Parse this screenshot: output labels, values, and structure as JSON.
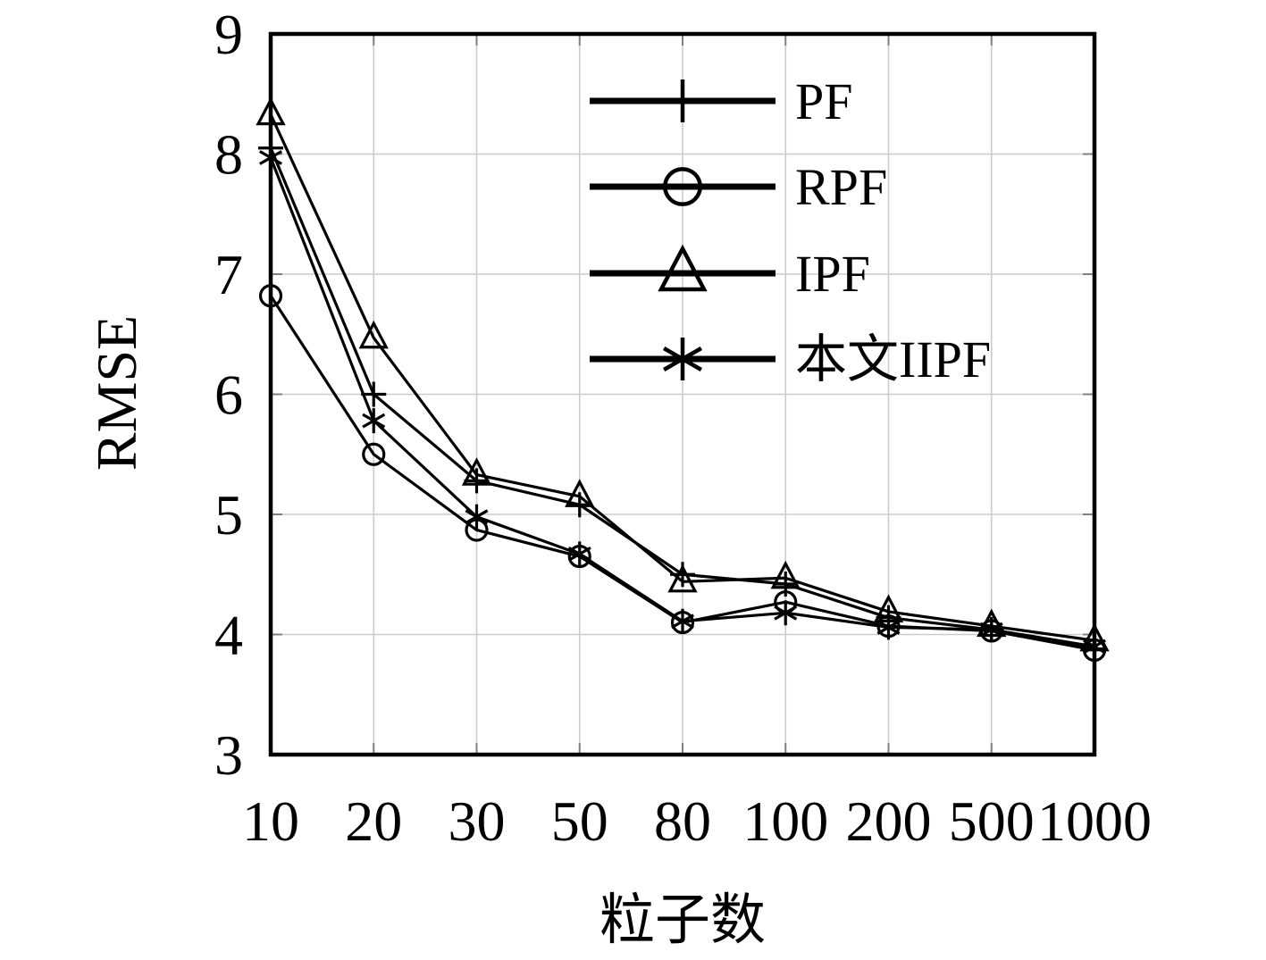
{
  "page": {
    "background": "#ffffff"
  },
  "chart_data": {
    "type": "line",
    "title": "",
    "xlabel": "粒子数",
    "ylabel": "RMSE",
    "x_scale": "categorical",
    "categories": [
      "10",
      "20",
      "30",
      "50",
      "80",
      "100",
      "200",
      "500",
      "1000"
    ],
    "ylim": [
      3,
      9
    ],
    "yticks": [
      9,
      8,
      7,
      6,
      5,
      4,
      3
    ],
    "grid": true,
    "legend_position": "top-right-inside",
    "legend_border": false,
    "series": [
      {
        "name": "PF",
        "marker": "plus",
        "color": "#000000",
        "values": [
          8.05,
          6.0,
          5.28,
          5.08,
          4.5,
          4.42,
          4.14,
          4.04,
          3.88
        ]
      },
      {
        "name": "RPF",
        "marker": "circle",
        "color": "#000000",
        "values": [
          6.82,
          5.5,
          4.87,
          4.65,
          4.1,
          4.27,
          4.07,
          4.03,
          3.87
        ]
      },
      {
        "name": "IPF",
        "marker": "triangle",
        "color": "#000000",
        "values": [
          8.33,
          6.47,
          5.33,
          5.15,
          4.44,
          4.47,
          4.19,
          4.07,
          3.95
        ]
      },
      {
        "name": "本文IIPF",
        "marker": "asterisk",
        "color": "#000000",
        "values": [
          7.97,
          5.78,
          4.98,
          4.67,
          4.11,
          4.18,
          4.06,
          4.04,
          3.9
        ]
      }
    ],
    "colors": {
      "line": "#000000",
      "grid": "#cccccc",
      "axis_box": "#000000",
      "tick": "#808080",
      "text": "#000000",
      "background": "#ffffff"
    }
  }
}
